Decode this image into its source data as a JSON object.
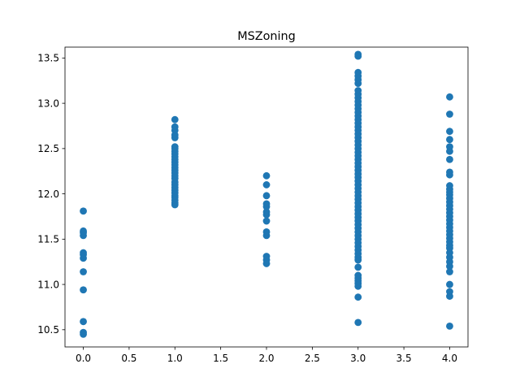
{
  "chart_data": {
    "type": "scatter",
    "title": "MSZoning",
    "xlabel": "",
    "ylabel": "",
    "xlim": [
      -0.2,
      4.2
    ],
    "ylim": [
      10.31,
      13.62
    ],
    "xticks": [
      0.0,
      0.5,
      1.0,
      1.5,
      2.0,
      2.5,
      3.0,
      3.5,
      4.0
    ],
    "xtick_labels": [
      "0.0",
      "0.5",
      "1.0",
      "1.5",
      "2.0",
      "2.5",
      "3.0",
      "3.5",
      "4.0"
    ],
    "yticks": [
      10.5,
      11.0,
      11.5,
      12.0,
      12.5,
      13.0,
      13.5
    ],
    "ytick_labels": [
      "10.5",
      "11.0",
      "11.5",
      "12.0",
      "12.5",
      "13.0",
      "13.5"
    ],
    "grid": false,
    "marker_color": "#1f77b4",
    "series": [
      {
        "points": [
          [
            0,
            10.45
          ],
          [
            0,
            10.47
          ],
          [
            0,
            10.59
          ],
          [
            0,
            10.94
          ],
          [
            0,
            11.14
          ],
          [
            0,
            11.29
          ],
          [
            0,
            11.33
          ],
          [
            0,
            11.35
          ],
          [
            0,
            11.54
          ],
          [
            0,
            11.57
          ],
          [
            0,
            11.59
          ],
          [
            0,
            11.81
          ],
          [
            1,
            11.88
          ],
          [
            1,
            11.9
          ],
          [
            1,
            11.93
          ],
          [
            1,
            11.96
          ],
          [
            1,
            11.98
          ],
          [
            1,
            12.01
          ],
          [
            1,
            12.04
          ],
          [
            1,
            12.07
          ],
          [
            1,
            12.1
          ],
          [
            1,
            12.13
          ],
          [
            1,
            12.17
          ],
          [
            1,
            12.2
          ],
          [
            1,
            12.23
          ],
          [
            1,
            12.26
          ],
          [
            1,
            12.29
          ],
          [
            1,
            12.32
          ],
          [
            1,
            12.35
          ],
          [
            1,
            12.38
          ],
          [
            1,
            12.41
          ],
          [
            1,
            12.44
          ],
          [
            1,
            12.47
          ],
          [
            1,
            12.5
          ],
          [
            1,
            12.52
          ],
          [
            1,
            12.62
          ],
          [
            1,
            12.65
          ],
          [
            1,
            12.7
          ],
          [
            1,
            12.74
          ],
          [
            1,
            12.82
          ],
          [
            2,
            11.23
          ],
          [
            2,
            11.27
          ],
          [
            2,
            11.31
          ],
          [
            2,
            11.54
          ],
          [
            2,
            11.58
          ],
          [
            2,
            11.7
          ],
          [
            2,
            11.77
          ],
          [
            2,
            11.8
          ],
          [
            2,
            11.86
          ],
          [
            2,
            11.89
          ],
          [
            2,
            11.98
          ],
          [
            2,
            12.1
          ],
          [
            2,
            12.2
          ],
          [
            3,
            10.58
          ],
          [
            3,
            10.86
          ],
          [
            3,
            10.98
          ],
          [
            3,
            11.01
          ],
          [
            3,
            11.04
          ],
          [
            3,
            11.07
          ],
          [
            3,
            11.1
          ],
          [
            3,
            11.19
          ],
          [
            3,
            11.27
          ],
          [
            3,
            11.3
          ],
          [
            3,
            11.34
          ],
          [
            3,
            11.38
          ],
          [
            3,
            11.42
          ],
          [
            3,
            11.46
          ],
          [
            3,
            11.5
          ],
          [
            3,
            11.54
          ],
          [
            3,
            11.58
          ],
          [
            3,
            11.62
          ],
          [
            3,
            11.66
          ],
          [
            3,
            11.7
          ],
          [
            3,
            11.74
          ],
          [
            3,
            11.78
          ],
          [
            3,
            11.82
          ],
          [
            3,
            11.86
          ],
          [
            3,
            11.9
          ],
          [
            3,
            11.94
          ],
          [
            3,
            11.98
          ],
          [
            3,
            12.02
          ],
          [
            3,
            12.06
          ],
          [
            3,
            12.1
          ],
          [
            3,
            12.14
          ],
          [
            3,
            12.18
          ],
          [
            3,
            12.22
          ],
          [
            3,
            12.26
          ],
          [
            3,
            12.3
          ],
          [
            3,
            12.34
          ],
          [
            3,
            12.38
          ],
          [
            3,
            12.42
          ],
          [
            3,
            12.46
          ],
          [
            3,
            12.5
          ],
          [
            3,
            12.54
          ],
          [
            3,
            12.58
          ],
          [
            3,
            12.62
          ],
          [
            3,
            12.66
          ],
          [
            3,
            12.7
          ],
          [
            3,
            12.74
          ],
          [
            3,
            12.78
          ],
          [
            3,
            12.82
          ],
          [
            3,
            12.86
          ],
          [
            3,
            12.9
          ],
          [
            3,
            12.94
          ],
          [
            3,
            12.98
          ],
          [
            3,
            13.02
          ],
          [
            3,
            13.06
          ],
          [
            3,
            13.1
          ],
          [
            3,
            13.14
          ],
          [
            3,
            13.22
          ],
          [
            3,
            13.26
          ],
          [
            3,
            13.3
          ],
          [
            3,
            13.34
          ],
          [
            3,
            13.52
          ],
          [
            3,
            13.54
          ],
          [
            4,
            10.54
          ],
          [
            4,
            10.87
          ],
          [
            4,
            10.92
          ],
          [
            4,
            11.0
          ],
          [
            4,
            11.14
          ],
          [
            4,
            11.2
          ],
          [
            4,
            11.25
          ],
          [
            4,
            11.3
          ],
          [
            4,
            11.35
          ],
          [
            4,
            11.4
          ],
          [
            4,
            11.43
          ],
          [
            4,
            11.47
          ],
          [
            4,
            11.51
          ],
          [
            4,
            11.55
          ],
          [
            4,
            11.59
          ],
          [
            4,
            11.63
          ],
          [
            4,
            11.67
          ],
          [
            4,
            11.71
          ],
          [
            4,
            11.75
          ],
          [
            4,
            11.79
          ],
          [
            4,
            11.83
          ],
          [
            4,
            11.87
          ],
          [
            4,
            11.91
          ],
          [
            4,
            11.95
          ],
          [
            4,
            11.99
          ],
          [
            4,
            12.02
          ],
          [
            4,
            12.05
          ],
          [
            4,
            12.09
          ],
          [
            4,
            12.21
          ],
          [
            4,
            12.24
          ],
          [
            4,
            12.38
          ],
          [
            4,
            12.47
          ],
          [
            4,
            12.52
          ],
          [
            4,
            12.6
          ],
          [
            4,
            12.69
          ],
          [
            4,
            12.88
          ],
          [
            4,
            13.07
          ]
        ]
      }
    ]
  }
}
